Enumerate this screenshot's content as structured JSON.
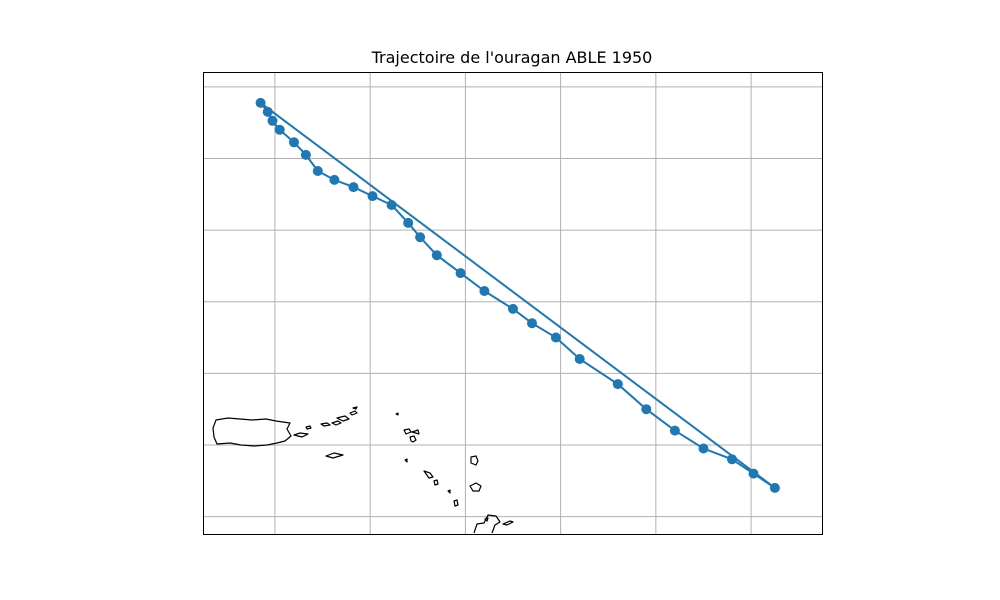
{
  "chart_data": {
    "type": "line",
    "title": "Trajectoire de l'ouragan ABLE 1950",
    "xlabel": "",
    "ylabel": "",
    "grid": true,
    "grid_x": [
      -66,
      -64,
      -62,
      -60,
      -58,
      -56
    ],
    "grid_y": [
      16,
      18,
      20,
      22,
      24,
      26,
      28
    ],
    "xlim": [
      -67.5,
      -54.5
    ],
    "ylim": [
      15.5,
      28.4
    ],
    "line_color": "#1f77b4",
    "coast_color": "#000000",
    "series": [
      {
        "x": [
          -55.5,
          -55.95,
          -56.4,
          -57.0,
          -57.6,
          -58.2,
          -58.8,
          -59.6,
          -60.1,
          -60.6,
          -61.0,
          -61.6,
          -62.1,
          -62.6,
          -62.95,
          -63.2,
          -63.55,
          -63.95,
          -64.35,
          -64.75,
          -65.1,
          -65.35,
          -65.6,
          -65.9,
          -66.05,
          -66.15,
          -66.3
        ],
        "y": [
          16.8,
          17.2,
          17.6,
          17.9,
          18.4,
          19.0,
          19.7,
          20.4,
          21.0,
          21.4,
          21.8,
          22.3,
          22.8,
          23.3,
          23.8,
          24.2,
          24.7,
          24.95,
          25.2,
          25.4,
          25.65,
          26.1,
          26.45,
          26.8,
          27.05,
          27.3,
          27.55
        ]
      }
    ]
  }
}
